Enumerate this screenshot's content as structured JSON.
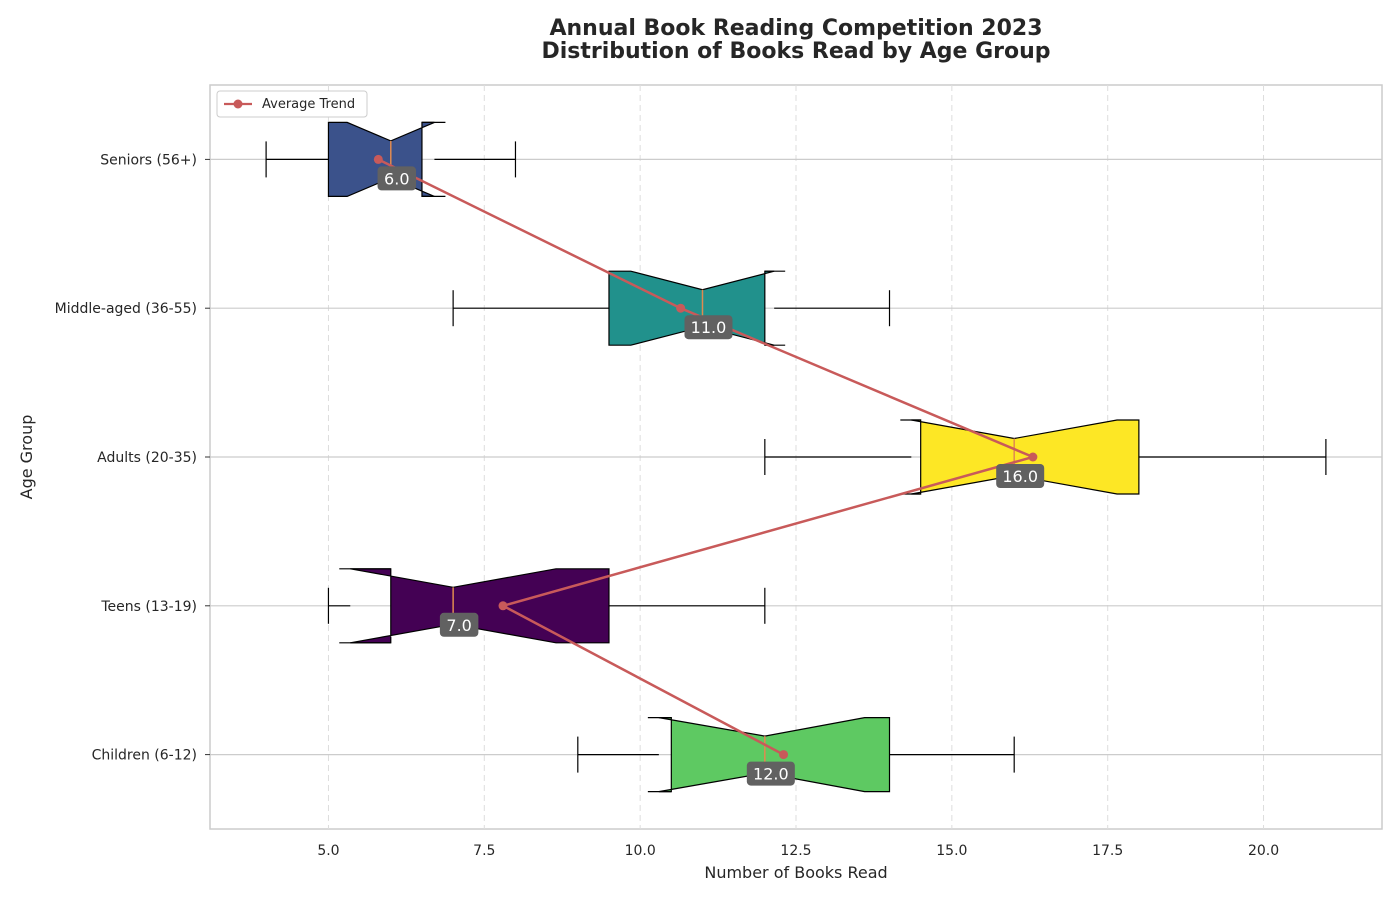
{
  "chart_data": {
    "type": "boxplot",
    "orientation": "horizontal",
    "notched": true,
    "title": "Annual Book Reading Competition 2023",
    "subtitle": "Distribution of Books Read by Age Group",
    "xlabel": "Number of Books Read",
    "ylabel": "Age Group",
    "xlim": [
      3.1,
      21.9
    ],
    "x_ticks": [
      5.0,
      7.5,
      10.0,
      12.5,
      15.0,
      17.5,
      20.0
    ],
    "x_tick_labels": [
      "5.0",
      "7.5",
      "10.0",
      "12.5",
      "15.0",
      "17.5",
      "20.0"
    ],
    "grid": true,
    "legend_position": "top-left",
    "categories": [
      "Children (6-12)",
      "Teens (13-19)",
      "Adults (20-35)",
      "Middle-aged (36-55)",
      "Seniors (56+)"
    ],
    "boxes": [
      {
        "name": "Children (6-12)",
        "whisker_low": 9,
        "q1": 10.5,
        "median": 12,
        "q3": 14,
        "whisker_high": 16,
        "notch_low": 10.3,
        "notch_high": 13.6,
        "median_label": "12.0",
        "color": "#5ec962"
      },
      {
        "name": "Teens (13-19)",
        "whisker_low": 5,
        "q1": 6,
        "median": 7,
        "q3": 9.5,
        "whisker_high": 12,
        "notch_low": 5.35,
        "notch_high": 8.65,
        "median_label": "7.0",
        "color": "#440154"
      },
      {
        "name": "Adults (20-35)",
        "whisker_low": 12,
        "q1": 14.5,
        "median": 16,
        "q3": 18,
        "whisker_high": 21,
        "notch_low": 14.35,
        "notch_high": 17.65,
        "median_label": "16.0",
        "color": "#fde725"
      },
      {
        "name": "Middle-aged (36-55)",
        "whisker_low": 7,
        "q1": 9.5,
        "median": 11,
        "q3": 12,
        "whisker_high": 14,
        "notch_low": 9.85,
        "notch_high": 12.15,
        "median_label": "11.0",
        "color": "#21918c"
      },
      {
        "name": "Seniors (56+)",
        "whisker_low": 4,
        "q1": 5,
        "median": 6,
        "q3": 6.5,
        "whisker_high": 8,
        "notch_low": 5.3,
        "notch_high": 6.7,
        "median_label": "6.0",
        "color": "#3b528b"
      }
    ],
    "trend_series": {
      "name": "Average Trend",
      "color": "#c85a5a",
      "points": [
        {
          "category": "Children (6-12)",
          "x": 12.3
        },
        {
          "category": "Teens (13-19)",
          "x": 7.8
        },
        {
          "category": "Adults (20-35)",
          "x": 16.3
        },
        {
          "category": "Middle-aged (36-55)",
          "x": 10.65
        },
        {
          "category": "Seniors (56+)",
          "x": 5.8
        }
      ]
    }
  }
}
